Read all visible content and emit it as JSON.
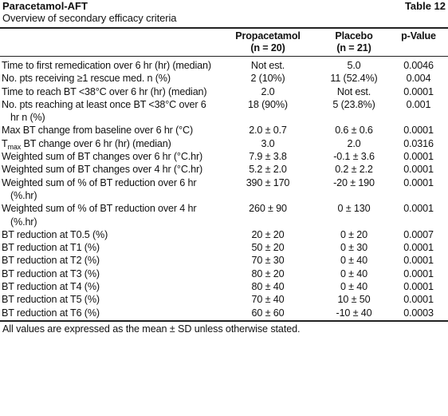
{
  "header": {
    "title": "Paracetamol-AFT",
    "table_number": "Table 12",
    "subtitle": "Overview of secondary efficacy criteria"
  },
  "table": {
    "columns": [
      [],
      [
        "Propacetamol",
        "(n = 20)"
      ],
      [
        "Placebo",
        "(n = 21)"
      ],
      [
        "p-Value"
      ]
    ],
    "rows": [
      [
        "Time to first remedication over 6 hr (hr) (median)",
        "Not est.",
        "5.0",
        "0.0046"
      ],
      [
        "No. pts receiving ≥1 rescue med. n (%)",
        "2 (10%)",
        "11 (52.4%)",
        "0.004"
      ],
      [
        "Time to reach BT <38°C over 6 hr (hr) (median)",
        "2.0",
        "Not est.",
        "0.0001"
      ],
      [
        "No. pts reaching at least once BT <38°C over 6 hr n (%)",
        "18 (90%)",
        "5 (23.8%)",
        "0.001"
      ],
      [
        "Max BT change from baseline over 6 hr (°C)",
        "2.0 ± 0.7",
        "0.6 ± 0.6",
        "0.0001"
      ],
      [
        {
          "base": "T",
          "subscript": "max",
          "rest": " BT change over 6 hr (hr) (median)"
        },
        "3.0",
        "2.0",
        "0.0316"
      ],
      [
        "Weighted sum of BT changes over 6 hr (°C.hr)",
        "7.9 ± 3.8",
        "-0.1 ± 3.6",
        "0.0001"
      ],
      [
        "Weighted sum of BT changes over 4 hr (°C.hr)",
        "5.2 ± 2.0",
        "0.2 ± 2.2",
        "0.0001"
      ],
      [
        "Weighted sum of % of BT reduction over 6 hr (%.hr)",
        "390 ± 170",
        "-20 ± 190",
        "0.0001"
      ],
      [
        "Weighted sum of % of BT reduction over 4 hr (%.hr)",
        "260 ± 90",
        "0 ± 130",
        "0.0001"
      ],
      [
        "BT reduction at T0.5 (%)",
        "20 ± 20",
        "0 ± 20",
        "0.0007"
      ],
      [
        "BT reduction at T1 (%)",
        "50 ± 20",
        "0 ± 30",
        "0.0001"
      ],
      [
        "BT reduction at T2 (%)",
        "70 ± 30",
        "0 ± 40",
        "0.0001"
      ],
      [
        "BT reduction at T3 (%)",
        "80 ± 20",
        "0 ± 40",
        "0.0001"
      ],
      [
        "BT reduction at T4 (%)",
        "80 ± 40",
        "0 ± 40",
        "0.0001"
      ],
      [
        "BT reduction at T5 (%)",
        "70 ± 40",
        "10 ± 50",
        "0.0001"
      ],
      [
        "BT reduction at T6 (%)",
        "60 ± 60",
        "-10 ± 40",
        "0.0003"
      ]
    ]
  },
  "footnote": "All values are expressed as the mean ± SD unless otherwise stated."
}
